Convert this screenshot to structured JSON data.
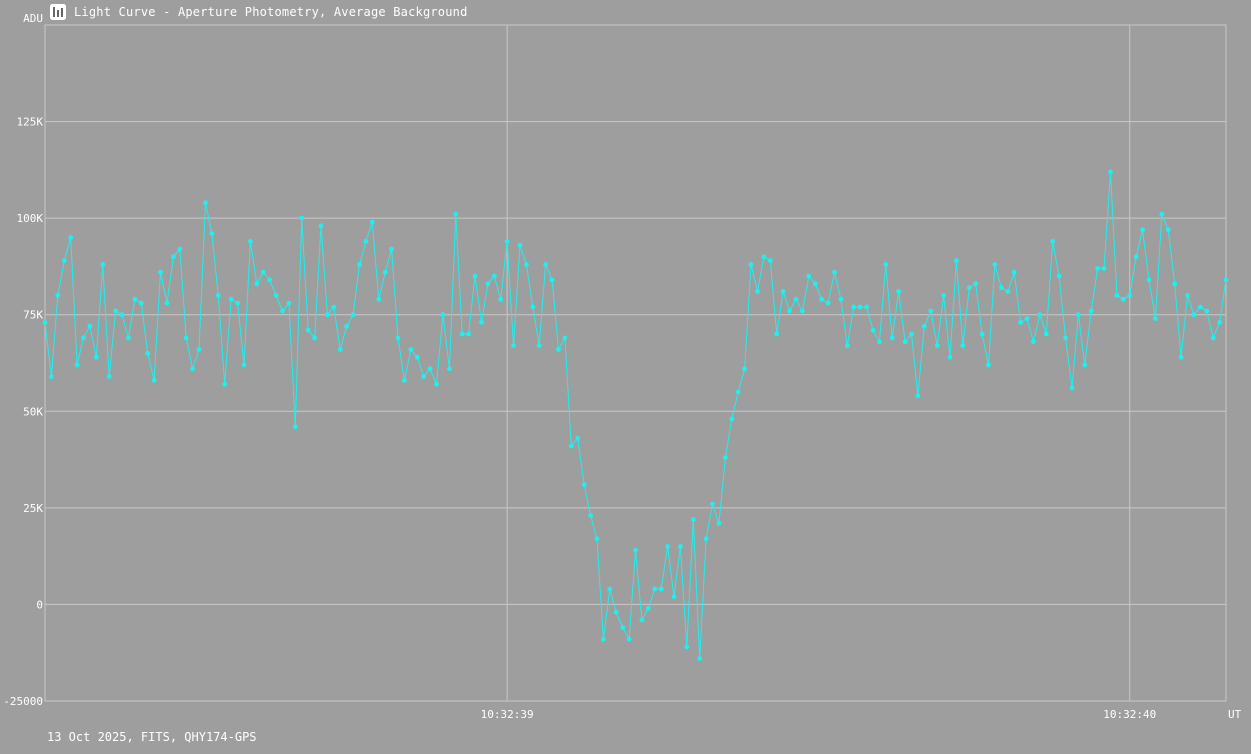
{
  "window": {
    "title": "Light Curve - Aperture Photometry, Average Background",
    "icon": "chart-window-icon"
  },
  "footer": {
    "info": "13 Oct 2025, FITS, QHY174-GPS"
  },
  "colors": {
    "background": "#9e9e9e",
    "grid": "#c8c8c8",
    "series": "#1ef0f0",
    "text": "#ffffff"
  },
  "chart_data": {
    "type": "line",
    "title": "Light Curve - Aperture Photometry, Average Background",
    "ylabel": "ADU",
    "xlabel": "UT",
    "ylim": [
      -25000,
      150000
    ],
    "y_ticks": [
      {
        "value": 125000,
        "label": "125K"
      },
      {
        "value": 100000,
        "label": "100K"
      },
      {
        "value": 75000,
        "label": "75K"
      },
      {
        "value": 50000,
        "label": "50K"
      },
      {
        "value": 25000,
        "label": "25K"
      },
      {
        "value": 0,
        "label": "0"
      },
      {
        "value": -25000,
        "label": "-25000"
      }
    ],
    "x_ticks": [
      {
        "index": 72,
        "label": "10:32:39"
      },
      {
        "index": 169,
        "label": "10:32:40"
      }
    ],
    "grid": true,
    "series": [
      {
        "values": [
          73000,
          59000,
          80000,
          89000,
          95000,
          62000,
          69000,
          72000,
          64000,
          88000,
          59000,
          76000,
          75000,
          69000,
          79000,
          78000,
          65000,
          58000,
          86000,
          78000,
          90000,
          92000,
          69000,
          61000,
          66000,
          104000,
          96000,
          80000,
          57000,
          79000,
          78000,
          62000,
          94000,
          83000,
          86000,
          84000,
          80000,
          76000,
          78000,
          46000,
          100000,
          71000,
          69000,
          98000,
          75000,
          77000,
          66000,
          72000,
          75000,
          88000,
          94000,
          99000,
          79000,
          86000,
          92000,
          69000,
          58000,
          66000,
          64000,
          59000,
          61000,
          57000,
          75000,
          61000,
          101000,
          70000,
          70000,
          85000,
          73000,
          83000,
          85000,
          79000,
          94000,
          67000,
          93000,
          88000,
          77000,
          67000,
          88000,
          84000,
          66000,
          69000,
          41000,
          43000,
          31000,
          23000,
          17000,
          -9000,
          4000,
          -2000,
          -6000,
          -9000,
          14000,
          -4000,
          -1000,
          4000,
          4000,
          15000,
          2000,
          15000,
          -11000,
          22000,
          -14000,
          17000,
          26000,
          21000,
          38000,
          48000,
          55000,
          61000,
          88000,
          81000,
          90000,
          89000,
          70000,
          81000,
          76000,
          79000,
          76000,
          85000,
          83000,
          79000,
          78000,
          86000,
          79000,
          67000,
          77000,
          77000,
          77000,
          71000,
          68000,
          88000,
          69000,
          81000,
          68000,
          70000,
          54000,
          72000,
          76000,
          67000,
          80000,
          64000,
          89000,
          67000,
          82000,
          83000,
          70000,
          62000,
          88000,
          82000,
          81000,
          86000,
          73000,
          74000,
          68000,
          75000,
          70000,
          94000,
          85000,
          69000,
          56000,
          75000,
          62000,
          76000,
          87000,
          87000,
          112000,
          80000,
          79000,
          80000,
          90000,
          97000,
          84000,
          74000,
          101000,
          97000,
          83000,
          64000,
          80000,
          75000,
          77000,
          76000,
          69000,
          73000,
          84000
        ]
      }
    ]
  }
}
